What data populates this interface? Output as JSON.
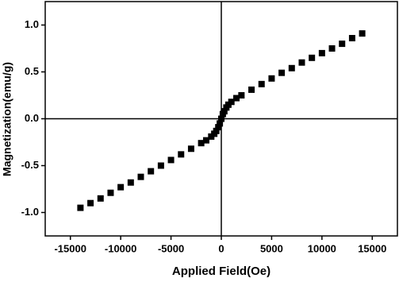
{
  "chart_data": {
    "type": "scatter",
    "x_label": "Applied Field(Oe)",
    "y_label": "Magnetization(emu/g)",
    "x": [
      -14000,
      -13000,
      -12000,
      -11000,
      -10000,
      -9000,
      -8000,
      -7000,
      -6000,
      -5000,
      -4000,
      -3000,
      -2000,
      -1500,
      -1000,
      -700,
      -500,
      -300,
      -150,
      0,
      150,
      300,
      500,
      700,
      1000,
      1500,
      2000,
      3000,
      4000,
      5000,
      6000,
      7000,
      8000,
      9000,
      10000,
      11000,
      12000,
      13000,
      14000
    ],
    "values": [
      -0.95,
      -0.9,
      -0.85,
      -0.79,
      -0.73,
      -0.68,
      -0.62,
      -0.56,
      -0.5,
      -0.44,
      -0.38,
      -0.32,
      -0.26,
      -0.23,
      -0.19,
      -0.16,
      -0.13,
      -0.09,
      -0.05,
      0,
      0.05,
      0.08,
      0.12,
      0.15,
      0.18,
      0.22,
      0.25,
      0.31,
      0.37,
      0.43,
      0.49,
      0.54,
      0.6,
      0.65,
      0.7,
      0.75,
      0.8,
      0.86,
      0.91
    ],
    "color": "#000000",
    "xlim": [
      -17500,
      17500
    ],
    "ylim": [
      -1.25,
      1.25
    ],
    "xticks": [
      -15000,
      -10000,
      -5000,
      0,
      5000,
      10000,
      15000
    ],
    "yticks": [
      {
        "value": -1,
        "label": "-1.0"
      },
      -0.5,
      {
        "value": 0,
        "label": "0.0"
      },
      0.5,
      {
        "value": 1,
        "label": "1.0"
      }
    ],
    "zero_lines": true
  }
}
